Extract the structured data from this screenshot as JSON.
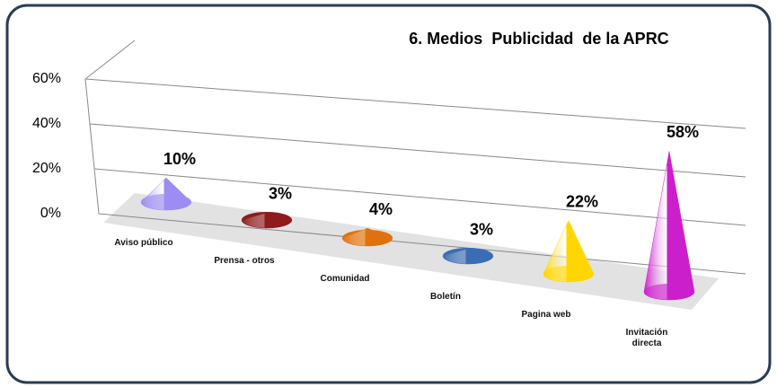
{
  "chart_data": {
    "type": "cone",
    "title": "6. Medios  Publicidad  de la APRC",
    "categories": [
      "Aviso público",
      "Prensa - otros",
      "Comunidad",
      "Boletín",
      "Pagina web",
      "Invitación directa"
    ],
    "values": [
      10,
      3,
      4,
      3,
      22,
      58
    ],
    "value_labels": [
      "10%",
      "3%",
      "4%",
      "3%",
      "22%",
      "58%"
    ],
    "colors": [
      "#9d8cf2",
      "#8e1c1c",
      "#e0720e",
      "#3b6eb3",
      "#ffd600",
      "#cc1fcc"
    ],
    "ylim": [
      0,
      60
    ],
    "yticks": [
      {
        "value": 0,
        "label": "0%"
      },
      {
        "value": 20,
        "label": "20%"
      },
      {
        "value": 40,
        "label": "40%"
      },
      {
        "value": 60,
        "label": "60%"
      }
    ],
    "grid": true
  }
}
